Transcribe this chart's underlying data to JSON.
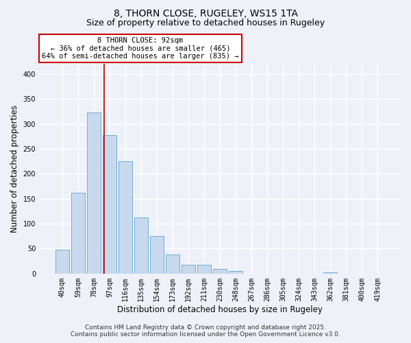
{
  "title": "8, THORN CLOSE, RUGELEY, WS15 1TA",
  "subtitle": "Size of property relative to detached houses in Rugeley",
  "xlabel": "Distribution of detached houses by size in Rugeley",
  "ylabel": "Number of detached properties",
  "bar_labels": [
    "40sqm",
    "59sqm",
    "78sqm",
    "97sqm",
    "116sqm",
    "135sqm",
    "154sqm",
    "173sqm",
    "192sqm",
    "211sqm",
    "230sqm",
    "248sqm",
    "267sqm",
    "286sqm",
    "305sqm",
    "324sqm",
    "343sqm",
    "362sqm",
    "381sqm",
    "400sqm",
    "419sqm"
  ],
  "bar_values": [
    48,
    162,
    323,
    278,
    225,
    113,
    75,
    38,
    18,
    17,
    10,
    5,
    0,
    0,
    0,
    0,
    0,
    3,
    0,
    0,
    0
  ],
  "bar_color": "#c8d9ee",
  "bar_edge_color": "#6baed6",
  "ylim": [
    0,
    420
  ],
  "yticks": [
    0,
    50,
    100,
    150,
    200,
    250,
    300,
    350,
    400
  ],
  "vline_color": "#aa0000",
  "annotation_title": "8 THORN CLOSE: 92sqm",
  "annotation_line1": "← 36% of detached houses are smaller (465)",
  "annotation_line2": "64% of semi-detached houses are larger (835) →",
  "annotation_box_color": "#ffffff",
  "annotation_box_edge": "#cc0000",
  "footnote1": "Contains HM Land Registry data © Crown copyright and database right 2025.",
  "footnote2": "Contains public sector information licensed under the Open Government Licence v3.0.",
  "background_color": "#eef2f8",
  "grid_color": "#ffffff",
  "title_fontsize": 10,
  "subtitle_fontsize": 9,
  "axis_label_fontsize": 8.5,
  "tick_fontsize": 7,
  "annotation_fontsize": 7.5,
  "footnote_fontsize": 6.5
}
